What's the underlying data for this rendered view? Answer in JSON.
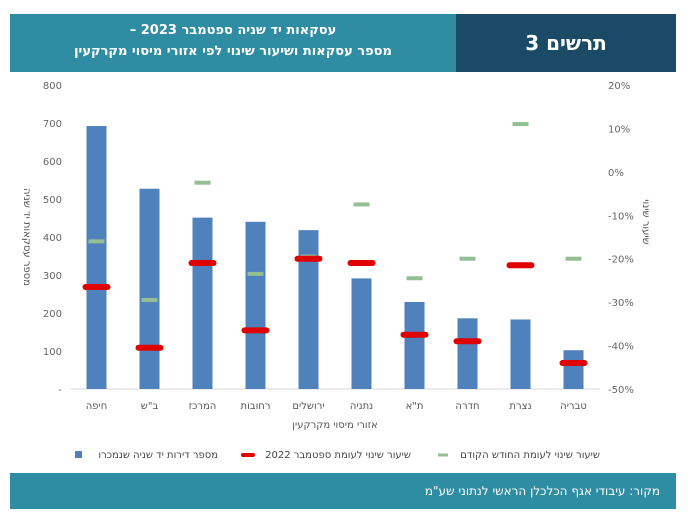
{
  "header": {
    "title_line1": "עסקאות יד שניה ספטמבר 2023 –",
    "title_line2": "מספר עסקאות ושיעור שינוי לפי אזורי מיסוי מקרקעין",
    "figure_label": "תרשים 3"
  },
  "footer": {
    "source": "מקור: עיבודי אגף הכלכלן הראשי לנתוני שע\"מ"
  },
  "colors": {
    "bar": "#4f81bd",
    "current_change": "#e00000",
    "previous_change": "#93bf93",
    "header_left": "#2e8ca3",
    "header_right": "#1b4a66"
  },
  "chart_data": {
    "type": "bar",
    "title": "",
    "xlabel": "אזורי מיסוי מקרקעין",
    "ylabel_left": "מספר עסקאות יד שניה",
    "ylabel_right": "שיעור שינוי",
    "categories": [
      "חיפה",
      "ב\"ש",
      "המרכז",
      "רחובות",
      "ירושלים",
      "נתניה",
      "ת\"א",
      "חדרה",
      "נצרת",
      "טבריה"
    ],
    "left_axis": {
      "min": 0,
      "max": 800,
      "step": 100,
      "ticks": [
        "-",
        "100",
        "200",
        "300",
        "400",
        "500",
        "600",
        "700",
        "800"
      ]
    },
    "right_axis": {
      "min": -50,
      "max": 20,
      "step": 10,
      "ticks": [
        "-50%",
        "-40%",
        "-30%",
        "-20%",
        "-10%",
        "0%",
        "10%",
        "20%"
      ]
    },
    "series": [
      {
        "name": "מספר דירות יד שניה שנמכרו",
        "type": "bar",
        "axis": "left",
        "values": [
          692,
          527,
          451,
          440,
          418,
          291,
          229,
          186,
          183,
          102
        ]
      },
      {
        "name": "שיעור שינוי לעומת ספטמבר 2022",
        "type": "marker",
        "axis": "right",
        "values": [
          -26.5,
          -40.5,
          -21.0,
          -36.5,
          -20.0,
          -21.0,
          -37.5,
          -39.0,
          -21.5,
          -44.0
        ]
      },
      {
        "name": "שיעור שינוי לעומת החודש הקודם",
        "type": "marker",
        "axis": "right",
        "values": [
          -16.0,
          -29.5,
          -2.5,
          -23.5,
          -19.5,
          -7.5,
          -24.5,
          -20.0,
          11.0,
          -20.0
        ]
      }
    ],
    "legend": {
      "placement": "bottom",
      "items": [
        "מספר דירות יד שניה שנמכרו",
        "שיעור שינוי לעומת ספטמבר 2022",
        "שיעור שינוי לעומת החודש הקודם"
      ]
    }
  }
}
